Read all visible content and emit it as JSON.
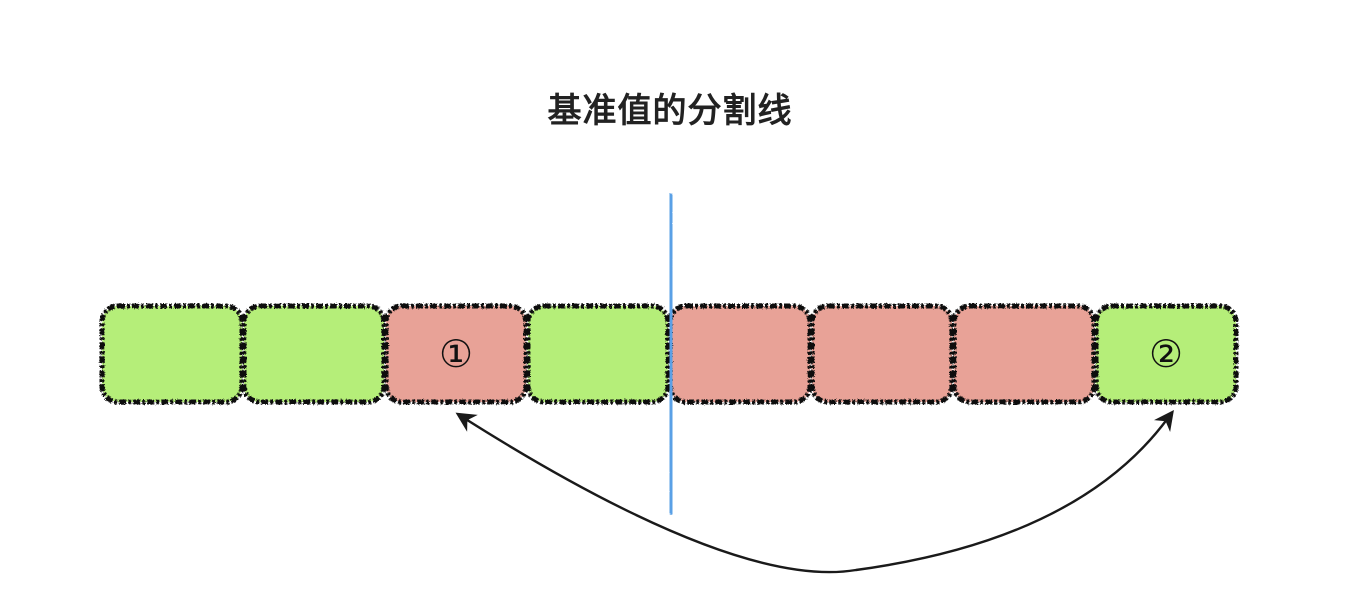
{
  "title": "基准值的分割线",
  "colors": {
    "green": "#b5ee79",
    "red": "#e8a297",
    "outline": "#111111",
    "divider": "#5aa0e6",
    "arrow": "#1a1a1a"
  },
  "cells": [
    {
      "color": "green",
      "label": ""
    },
    {
      "color": "green",
      "label": ""
    },
    {
      "color": "red",
      "label": "①"
    },
    {
      "color": "green",
      "label": ""
    },
    {
      "color": "red",
      "label": ""
    },
    {
      "color": "red",
      "label": ""
    },
    {
      "color": "red",
      "label": ""
    },
    {
      "color": "green",
      "label": "②"
    }
  ],
  "divider_after_cell": 4,
  "swap_arrow": {
    "from_cell": 3,
    "to_cell": 8,
    "style": "double-headed"
  }
}
